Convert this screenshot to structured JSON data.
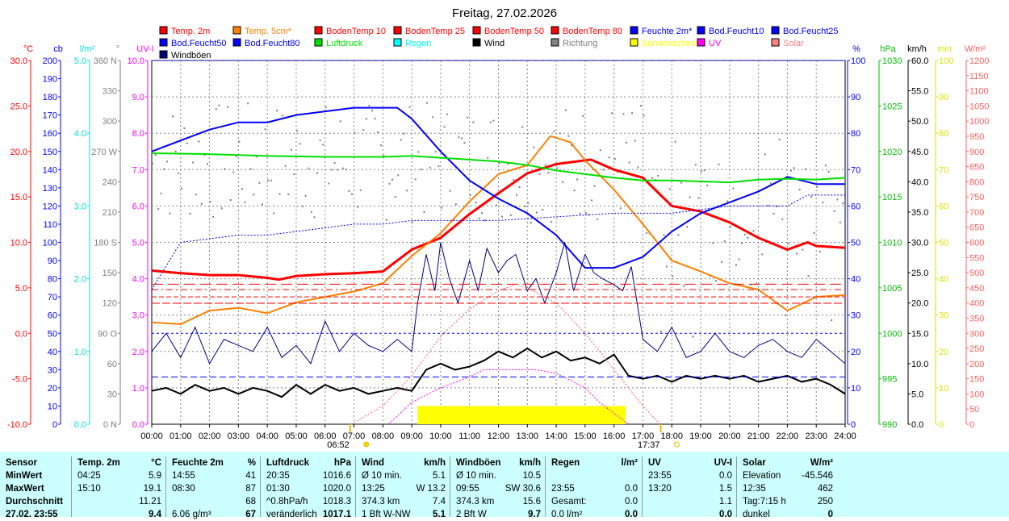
{
  "chart_data": {
    "type": "line",
    "title": "Freitag, 27.02.2026",
    "legend": [
      {
        "label": "Temp. 2m",
        "color": "#ff0000"
      },
      {
        "label": "Temp. 5cm*",
        "color": "#ff8000"
      },
      {
        "label": "BodenTemp 10",
        "color": "#ff0000"
      },
      {
        "label": "BodenTemp 25",
        "color": "#ff0000"
      },
      {
        "label": "BodenTemp 50",
        "color": "#ff0000"
      },
      {
        "label": "BodenTemp 80",
        "color": "#ff0000"
      },
      {
        "label": "Feuchte 2m*",
        "color": "#0000ff"
      },
      {
        "label": "Bod.Feucht10",
        "color": "#0000ff"
      },
      {
        "label": "Bod.Feucht25",
        "color": "#0000ff"
      },
      {
        "label": "Bod.Feucht50",
        "color": "#0000ff"
      },
      {
        "label": "Bod.Feucht80",
        "color": "#0000ff"
      },
      {
        "label": "Luftdruck",
        "color": "#00e000"
      },
      {
        "label": "Regen",
        "color": "#00ffff"
      },
      {
        "label": "Wind",
        "color": "#000000"
      },
      {
        "label": "Richtung",
        "color": "#808080"
      },
      {
        "label": "Sonnenschein",
        "color": "#ffff00"
      },
      {
        "label": "UV",
        "color": "#ff00ff"
      },
      {
        "label": "Solar",
        "color": "#ff8080"
      },
      {
        "label": "Windböen",
        "color": "#000080"
      }
    ],
    "x_ticks": [
      "00:00",
      "01:00",
      "02:00",
      "03:00",
      "04:00",
      "05:00",
      "06:00",
      "07:00",
      "08:00",
      "09:00",
      "10:00",
      "11:00",
      "12:00",
      "13:00",
      "14:00",
      "15:00",
      "16:00",
      "17:00",
      "18:00",
      "19:00",
      "20:00",
      "21:00",
      "22:00",
      "23:00",
      "24:00"
    ],
    "sunrise": "06:52",
    "sunset": "17:37",
    "left_axes": [
      {
        "unit": "°C",
        "color": "#ff0000",
        "min": -10,
        "max": 30,
        "ticks": [
          "30.0",
          "25.0",
          "20.0",
          "15.0",
          "10.0",
          "5.0",
          "0.0",
          "-5.0",
          "-10.0"
        ]
      },
      {
        "unit": "cb",
        "color": "#0000ff",
        "min": 0,
        "max": 200,
        "ticks": [
          "200",
          "190",
          "180",
          "170",
          "160",
          "150",
          "140",
          "130",
          "120",
          "110",
          "100",
          "90",
          "80",
          "70",
          "60",
          "50",
          "40",
          "30",
          "20",
          "10",
          "0"
        ]
      },
      {
        "unit": "l/m²",
        "color": "#00e0e0",
        "min": 0,
        "max": 5,
        "ticks": [
          "5.0",
          "4.0",
          "3.0",
          "2.0",
          "1.0",
          "0.0"
        ]
      },
      {
        "unit": "°",
        "color": "#808080",
        "min": 0,
        "max": 360,
        "ticks": [
          "360 N",
          "330",
          "300",
          "270 W",
          "240",
          "210",
          "180 S",
          "150",
          "120",
          "90 O",
          "60",
          "30",
          "0 N"
        ]
      },
      {
        "unit": "UV-I",
        "color": "#ff00ff",
        "min": 0,
        "max": 10,
        "ticks": [
          "10.0",
          "9.0",
          "8.0",
          "7.0",
          "6.0",
          "5.0",
          "4.0",
          "3.0",
          "2.0",
          "1.0",
          "0.0"
        ]
      }
    ],
    "right_axes": [
      {
        "unit": "%",
        "color": "#0000ff",
        "min": 0,
        "max": 100,
        "ticks": [
          "100",
          "90",
          "80",
          "70",
          "60",
          "50",
          "40",
          "30",
          "20",
          "10",
          "0"
        ]
      },
      {
        "unit": "hPa",
        "color": "#00c000",
        "min": 990,
        "max": 1030,
        "ticks": [
          "1030",
          "1025",
          "1020",
          "1015",
          "1010",
          "1005",
          "1000",
          "995",
          "990"
        ]
      },
      {
        "unit": "km/h",
        "color": "#000000",
        "min": 0,
        "max": 60,
        "ticks": [
          "60.0",
          "55.0",
          "50.0",
          "45.0",
          "40.0",
          "35.0",
          "30.0",
          "25.0",
          "20.0",
          "15.0",
          "10.0",
          "5.0",
          "0.0"
        ]
      },
      {
        "unit": "min",
        "color": "#e0e000",
        "min": 0,
        "max": 100,
        "ticks": [
          "100",
          "90",
          "80",
          "70",
          "60",
          "50",
          "40",
          "30",
          "20",
          "10",
          "0"
        ]
      },
      {
        "unit": "W/m²",
        "color": "#ff6060",
        "min": 0,
        "max": 1200,
        "ticks": [
          "1200",
          "1150",
          "1100",
          "1050",
          "1000",
          "950",
          "900",
          "850",
          "800",
          "750",
          "700",
          "650",
          "600",
          "550",
          "500",
          "450",
          "400",
          "350",
          "300",
          "250",
          "200",
          "150",
          "100",
          "50",
          "0"
        ]
      }
    ],
    "series": [
      {
        "name": "Temp. 2m",
        "axis": "°C",
        "color": "#ff0000",
        "width": 3,
        "x": [
          0,
          1,
          2,
          3,
          4,
          4.4,
          5,
          6,
          7,
          8,
          9,
          10,
          11,
          12,
          13,
          14,
          15.2,
          16,
          17,
          18,
          19,
          20,
          21,
          22,
          22.7,
          23,
          24
        ],
        "y": [
          6.9,
          6.6,
          6.4,
          6.4,
          6.1,
          5.9,
          6.3,
          6.5,
          6.6,
          6.8,
          9.2,
          10.5,
          13.1,
          15.4,
          17.6,
          18.6,
          19.1,
          18.0,
          17.1,
          14.0,
          13.4,
          12.2,
          10.5,
          9.2,
          10.0,
          9.6,
          9.4
        ]
      },
      {
        "name": "Temp. 5cm*",
        "axis": "°C",
        "color": "#ff8000",
        "width": 2,
        "x": [
          0,
          1,
          2,
          3,
          4,
          5,
          6,
          7,
          8,
          9,
          10,
          11,
          12,
          13,
          13.8,
          14.5,
          15,
          16,
          17,
          18,
          19,
          20,
          21,
          22,
          23,
          24
        ],
        "y": [
          1.2,
          1.0,
          2.5,
          2.8,
          2.2,
          3.4,
          4.0,
          4.6,
          5.5,
          8.5,
          11.0,
          14.5,
          17.5,
          18.5,
          21.7,
          21.0,
          19.0,
          15.8,
          12.0,
          8.0,
          6.8,
          5.5,
          4.8,
          2.5,
          4.0,
          4.2
        ]
      },
      {
        "name": "Feuchte 2m*",
        "axis": "%",
        "color": "#0000ff",
        "width": 2,
        "x": [
          0,
          1,
          2,
          3,
          4,
          5,
          6,
          7,
          8,
          8.5,
          9,
          10,
          11,
          12,
          13,
          14,
          15,
          16,
          17,
          18,
          19,
          20,
          21,
          22,
          23,
          24
        ],
        "y": [
          75,
          78,
          81,
          83,
          83,
          85,
          86,
          87,
          87,
          87,
          84,
          75,
          67,
          62,
          58,
          52,
          43,
          43,
          46,
          53,
          58,
          61,
          64,
          68,
          66,
          66
        ]
      },
      {
        "name": "Luftdruck",
        "axis": "hPa",
        "color": "#00e000",
        "width": 2,
        "x": [
          0,
          2,
          4,
          6,
          8,
          9,
          10,
          12,
          13,
          14,
          15,
          16,
          17,
          18,
          19,
          20,
          21,
          22,
          23,
          24
        ],
        "y": [
          1019.8,
          1019.7,
          1019.5,
          1019.4,
          1019.4,
          1019.5,
          1019.3,
          1018.9,
          1018.5,
          1017.9,
          1017.5,
          1017.1,
          1016.8,
          1016.8,
          1016.7,
          1016.6,
          1016.9,
          1017.0,
          1016.9,
          1017.1
        ]
      },
      {
        "name": "Bod.Feucht",
        "axis": "%",
        "color": "#0000ff",
        "width": 1,
        "dash": "2,2",
        "x": [
          0,
          1,
          2,
          3,
          4,
          5,
          6,
          7,
          8,
          9,
          10,
          12,
          14,
          16,
          18,
          20,
          22,
          22.7,
          24
        ],
        "y": [
          37,
          50,
          51,
          52,
          52,
          53,
          54,
          55,
          55,
          56,
          56,
          56,
          57,
          58,
          58,
          60,
          60,
          63,
          63
        ]
      },
      {
        "name": "Windböen",
        "axis": "km/h",
        "color": "#000080",
        "width": 1,
        "x": [
          0,
          0.5,
          1,
          1.5,
          2,
          2.5,
          3,
          3.5,
          4,
          4.5,
          5,
          5.5,
          6,
          6.5,
          7,
          7.5,
          8,
          8.5,
          9,
          9.2,
          9.5,
          9.8,
          10,
          10.3,
          10.6,
          11,
          11.3,
          11.6,
          12,
          12.3,
          12.6,
          13,
          13.3,
          13.6,
          14,
          14.3,
          14.6,
          15,
          15.3,
          15.6,
          16,
          16.3,
          16.6,
          17,
          17.5,
          18,
          18.5,
          19,
          19.5,
          20,
          20.5,
          21,
          21.5,
          22,
          22.5,
          23,
          23.5,
          24
        ],
        "y": [
          12,
          15,
          11,
          16,
          10,
          14,
          13,
          12,
          16,
          11,
          13,
          10,
          17,
          12,
          15,
          13,
          12,
          14,
          12,
          20,
          28,
          22,
          30,
          24,
          20,
          27,
          22,
          29,
          25,
          27,
          28,
          22,
          24,
          20,
          25,
          30,
          22,
          28,
          25,
          24,
          23,
          22,
          26,
          14,
          12,
          16,
          11,
          12,
          15,
          12,
          11,
          13,
          14,
          12,
          11,
          14,
          12,
          10
        ]
      },
      {
        "name": "Wind",
        "axis": "km/h",
        "color": "#000000",
        "width": 2,
        "x": [
          0,
          0.5,
          1,
          1.5,
          2,
          2.5,
          3,
          3.5,
          4,
          4.5,
          5,
          5.5,
          6,
          6.5,
          7,
          7.5,
          8,
          8.5,
          9,
          9.5,
          10,
          10.5,
          11,
          11.5,
          12,
          12.5,
          13,
          13.5,
          14,
          14.5,
          15,
          15.5,
          16,
          16.5,
          17,
          17.5,
          18,
          18.5,
          19,
          19.5,
          20,
          20.5,
          21,
          21.5,
          22,
          22.5,
          23,
          23.5,
          24
        ],
        "y": [
          5.5,
          6,
          5,
          6.5,
          5.5,
          6,
          5,
          6,
          5.5,
          4.5,
          6.5,
          5,
          6.5,
          5.5,
          6,
          5,
          5.5,
          6,
          5.5,
          9,
          10,
          9,
          9.5,
          10.5,
          12,
          11,
          12.5,
          11,
          12,
          10.5,
          11,
          10,
          11.5,
          8,
          7.5,
          8,
          7,
          8,
          7.5,
          8,
          7.5,
          8,
          7,
          7.5,
          8,
          7,
          7.5,
          6.5,
          5
        ]
      },
      {
        "name": "UV",
        "axis": "UV-I",
        "color": "#ff00ff",
        "width": 1,
        "dash": "2,2",
        "x": [
          8.2,
          9,
          10,
          11,
          11.5,
          12,
          13,
          13.3,
          14,
          15,
          15.5,
          16,
          16.5
        ],
        "y": [
          0,
          0.6,
          1.0,
          1.3,
          1.5,
          1.5,
          1.5,
          1.5,
          1.4,
          1.0,
          0.6,
          0.3,
          0
        ]
      },
      {
        "name": "Solar",
        "axis": "W/m²",
        "color": "#ff6060",
        "width": 1,
        "dash": "2,2",
        "x": [
          6.9,
          8,
          9,
          10,
          11,
          12,
          12.6,
          13,
          14,
          15,
          16,
          17,
          17.6
        ],
        "y": [
          0,
          60,
          160,
          290,
          380,
          440,
          462,
          450,
          400,
          300,
          180,
          60,
          0
        ]
      },
      {
        "name": "BodenTemp 10",
        "axis": "°C",
        "color": "#ff0000",
        "width": 1,
        "dash": "14,6",
        "x": [
          0,
          24
        ],
        "y": [
          5.4,
          5.4
        ]
      },
      {
        "name": "BodenTemp 25",
        "axis": "°C",
        "color": "#ff0000",
        "width": 1,
        "dash": "8,4,2,4",
        "x": [
          0,
          24
        ],
        "y": [
          4.8,
          4.8
        ]
      },
      {
        "name": "BodenTemp 50",
        "axis": "°C",
        "color": "#ff0000",
        "width": 1,
        "dash": "6,3",
        "x": [
          0,
          24
        ],
        "y": [
          4.0,
          4.0
        ]
      },
      {
        "name": "BodenTemp 80",
        "axis": "°C",
        "color": "#ff0000",
        "width": 1,
        "dash": "10,3",
        "x": [
          0,
          24
        ],
        "y": [
          3.3,
          3.3
        ]
      },
      {
        "name": "Bod.Feucht50",
        "axis": "%",
        "color": "#0000ff",
        "width": 1,
        "dash": "3,3",
        "x": [
          0,
          24
        ],
        "y": [
          25,
          25
        ]
      },
      {
        "name": "Bod.Feucht80",
        "axis": "%",
        "color": "#0000ff",
        "width": 1,
        "dash": "8,4",
        "x": [
          0,
          24
        ],
        "y": [
          13,
          13
        ]
      }
    ],
    "sunshine": {
      "axis": "min",
      "from": 9.2,
      "to": 16.4,
      "value": 5,
      "color": "#ffff00"
    }
  },
  "table": {
    "cols": [
      {
        "h": [
          "Sensor",
          ""
        ],
        "rows": [
          [
            "MinWert",
            ""
          ],
          [
            "MaxWert",
            ""
          ],
          [
            "Durchschnitt",
            ""
          ],
          [
            "27.02. 23:55",
            ""
          ]
        ]
      },
      {
        "h": [
          "Temp. 2m",
          "°C"
        ],
        "rows": [
          [
            "04:25",
            "5.9"
          ],
          [
            "15:10",
            "19.1"
          ],
          [
            "",
            "11.21"
          ],
          [
            "",
            "9.4"
          ]
        ]
      },
      {
        "h": [
          "Feuchte 2m",
          "%"
        ],
        "rows": [
          [
            "14:55",
            "41"
          ],
          [
            "08:30",
            "87"
          ],
          [
            "",
            "68"
          ],
          [
            "6.06 g/m³",
            "67"
          ]
        ]
      },
      {
        "h": [
          "Luftdruck",
          "hPa"
        ],
        "rows": [
          [
            "20:35",
            "1016.6"
          ],
          [
            "01:30",
            "1020.0"
          ],
          [
            "^0.8hPa/h",
            "1018.3"
          ],
          [
            "veränderlich",
            "1017.1"
          ]
        ]
      },
      {
        "h": [
          "Wind",
          "km/h"
        ],
        "rows": [
          [
            "Ø 10 min.",
            "5.1"
          ],
          [
            "13:25",
            "W 13.2"
          ],
          [
            "374.3 km",
            "7.4"
          ],
          [
            "1 Bft W-NW",
            "5.1"
          ]
        ]
      },
      {
        "h": [
          "Windböen",
          "km/h"
        ],
        "rows": [
          [
            "Ø 10 min.",
            "10.5"
          ],
          [
            "09:55",
            "SW 30.6"
          ],
          [
            "374.3 km",
            "15.6"
          ],
          [
            "2 Bft W",
            "9.7"
          ]
        ]
      },
      {
        "h": [
          "Regen",
          "l/m²"
        ],
        "rows": [
          [
            "",
            ""
          ],
          [
            "23:55",
            "0.0"
          ],
          [
            "Gesamt:",
            "0.0"
          ],
          [
            "0.0 l/m²",
            "0.0"
          ]
        ]
      },
      {
        "h": [
          "UV",
          "UV-I"
        ],
        "rows": [
          [
            "23:55",
            "0.0"
          ],
          [
            "13:20",
            "1.5"
          ],
          [
            "",
            "1.1"
          ],
          [
            "",
            "0.0"
          ]
        ]
      },
      {
        "h": [
          "Solar",
          "W/m²"
        ],
        "rows": [
          [
            "Elevation",
            "-45.546"
          ],
          [
            "12:35",
            "462"
          ],
          [
            "Tag:7:15 h",
            "250"
          ],
          [
            "dunkel",
            "0"
          ]
        ]
      }
    ]
  }
}
